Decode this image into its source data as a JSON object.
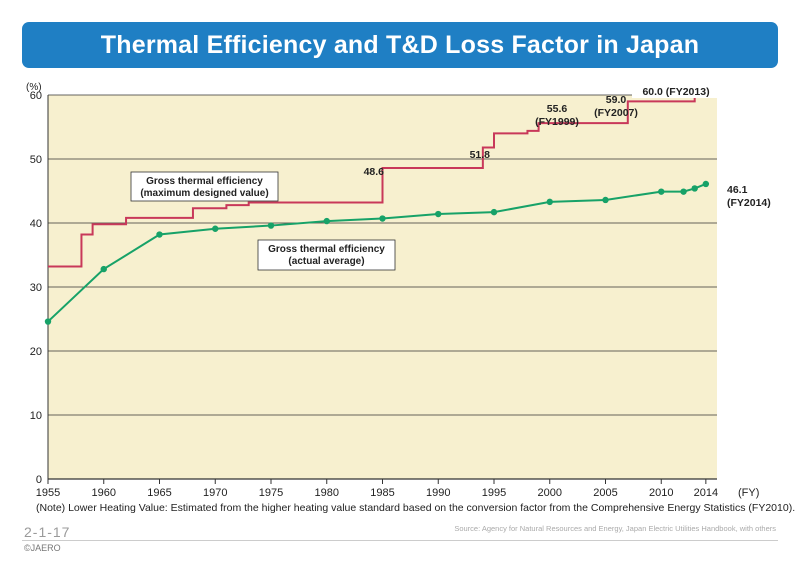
{
  "title": "Thermal Efficiency and T&D Loss Factor in Japan",
  "note": "(Note) Lower Heating Value: Estimated from the higher heating value standard based on the conversion factor from the Comprehensive Energy Statistics (FY2010).",
  "figure_number": "2-1-17",
  "copyright": "©JAERO",
  "source": "Source: Agency for Natural Resources and Energy, Japan Electric Utilities Handbook, with others",
  "colors": {
    "title_bg": "#1f7fc4",
    "plot_bg": "#f7f0cf",
    "series_max": "#c8385a",
    "series_avg": "#17a268"
  },
  "chart_data": {
    "type": "line",
    "xlabel": "(FY)",
    "ylabel": "(%)",
    "xlim": [
      1955,
      2015
    ],
    "ylim": [
      0,
      60
    ],
    "xticks": [
      1955,
      1960,
      1965,
      1970,
      1975,
      1980,
      1985,
      1990,
      1995,
      2000,
      2005,
      2010,
      2014
    ],
    "yticks": [
      0,
      10,
      20,
      30,
      40,
      50,
      60
    ],
    "grid": true,
    "series": [
      {
        "name": "Gross thermal efficiency (maximum designed value)",
        "label_lines": [
          "Gross thermal efficiency",
          "(maximum designed value)"
        ],
        "style": "step",
        "color": "#c8385a",
        "x": [
          1955,
          1958,
          1959,
          1962,
          1968,
          1971,
          1973,
          1985,
          1994,
          1995,
          1998,
          1999,
          2007,
          2013,
          2014
        ],
        "y": [
          33.2,
          38.2,
          39.8,
          40.8,
          42.3,
          42.8,
          43.2,
          48.6,
          51.8,
          54.0,
          54.4,
          55.6,
          59.0,
          60.0,
          60.0
        ]
      },
      {
        "name": "Gross thermal efficiency (actual average)",
        "label_lines": [
          "Gross thermal efficiency",
          "(actual average)"
        ],
        "style": "line",
        "color": "#17a268",
        "x": [
          1955,
          1960,
          1965,
          1970,
          1975,
          1980,
          1985,
          1990,
          1995,
          2000,
          2005,
          2010,
          2012,
          2013,
          2014
        ],
        "y": [
          24.6,
          32.8,
          38.2,
          39.1,
          39.6,
          40.3,
          40.7,
          41.4,
          41.7,
          43.3,
          43.6,
          44.9,
          44.9,
          45.4,
          46.1
        ]
      }
    ],
    "annotations": [
      {
        "text": "48.6"
      },
      {
        "text": "51.8"
      },
      {
        "text": "55.6"
      },
      {
        "text": "(FY1999)"
      },
      {
        "text": "59.0"
      },
      {
        "text": "(FY2007)"
      },
      {
        "text": "60.0 (FY2013)"
      },
      {
        "text": "46.1"
      },
      {
        "text": "(FY2014)"
      }
    ]
  }
}
